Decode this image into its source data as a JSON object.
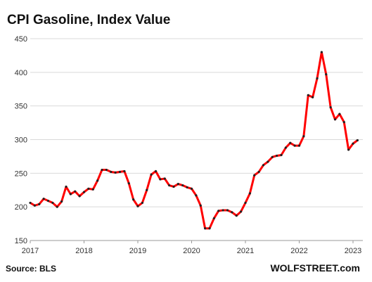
{
  "chart_data": {
    "type": "line",
    "title": "CPI Gasoline,  Index Value",
    "source": "Source: BLS",
    "brand": "WOLFSTREET.com",
    "xlabel": "",
    "ylabel": "",
    "ylim": [
      150,
      450
    ],
    "yticks": [
      150,
      200,
      250,
      300,
      350,
      400,
      450
    ],
    "xticks": [
      "2017",
      "2018",
      "2019",
      "2020",
      "2021",
      "2022",
      "2023"
    ],
    "grid": true,
    "line_color": "#ff0000",
    "marker_color": "#222222",
    "series": [
      {
        "start": "2017-01",
        "values": [
          206,
          202,
          204,
          212,
          209,
          206,
          200,
          208,
          230,
          219,
          223,
          216,
          222,
          227,
          226,
          239,
          255,
          255,
          252,
          251,
          252,
          253,
          235,
          211,
          201,
          206,
          225,
          248,
          253,
          241,
          242,
          232,
          230,
          234,
          232,
          229,
          227,
          217,
          202,
          168,
          168,
          183,
          194,
          195,
          195,
          192,
          187,
          193,
          206,
          220,
          247,
          252,
          262,
          267,
          274,
          276,
          277,
          288,
          295,
          291,
          291,
          305,
          366,
          363,
          391,
          430,
          397,
          348,
          330,
          338,
          326,
          285,
          294,
          299
        ]
      }
    ]
  }
}
